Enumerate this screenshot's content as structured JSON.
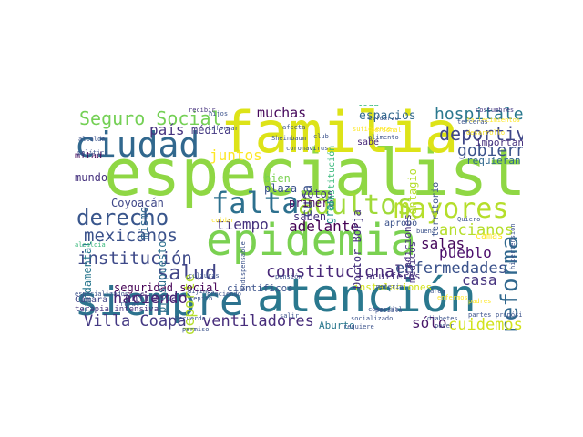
{
  "words": [
    {
      "text": "especialista",
      "color": "#8fd744"
    },
    {
      "text": "familia",
      "color": "#dde318"
    },
    {
      "text": "epidemia",
      "color": "#7ad151"
    },
    {
      "text": "atención",
      "color": "#2a788e"
    },
    {
      "text": "siempre",
      "color": "#2c728e"
    },
    {
      "text": "ciudad",
      "color": "#31688e"
    },
    {
      "text": "falta",
      "color": "#2d708e"
    },
    {
      "text": "adultos",
      "color": "#a0da39"
    },
    {
      "text": "mayores",
      "color": "#b5de2b"
    },
    {
      "text": "derecho",
      "color": "#39568c"
    },
    {
      "text": "Seguro Social",
      "color": "#74d055"
    },
    {
      "text": "hospitales",
      "color": "#2a788e"
    },
    {
      "text": "deportivo",
      "color": "#3f4788"
    },
    {
      "text": "reforma",
      "color": "#31688e"
    },
    {
      "text": "gobierno",
      "color": "#3b528b"
    },
    {
      "text": "salud",
      "color": "#414487"
    },
    {
      "text": "institución",
      "color": "#3e4a89"
    },
    {
      "text": "mexicanos",
      "color": "#3b528b"
    },
    {
      "text": "constitucional",
      "color": "#482878"
    },
    {
      "text": "enfermedades",
      "color": "#3b528b"
    },
    {
      "text": "ventiladores",
      "color": "#472d7b"
    },
    {
      "text": "cuidemos",
      "color": "#d2e21b"
    },
    {
      "text": "ancianos",
      "color": "#b5de2b"
    },
    {
      "text": "Villa Coapa",
      "color": "#443983"
    },
    {
      "text": "haciendo",
      "color": "#482173"
    },
    {
      "text": "país",
      "color": "#46337f"
    },
    {
      "text": "juntos",
      "color": "#fde725"
    },
    {
      "text": "tiempo",
      "color": "#46327e"
    },
    {
      "text": "adelante",
      "color": "#440154"
    },
    {
      "text": "salas",
      "color": "#46085c"
    },
    {
      "text": "pueblo",
      "color": "#4a0c6b"
    },
    {
      "text": "casa",
      "color": "#46337f"
    },
    {
      "text": "sólo",
      "color": "#48186a"
    },
    {
      "text": "muchas",
      "color": "#46085c"
    },
    {
      "text": "cura",
      "color": "#3b528b"
    },
    {
      "text": "deporte",
      "color": "#b5de2b"
    },
    {
      "text": "espacios",
      "color": "#31688e"
    },
    {
      "text": "toda",
      "color": "#35b779"
    },
    {
      "text": "fundamental",
      "color": "#2a788e"
    },
    {
      "text": "seguridad social",
      "color": "#440154"
    },
    {
      "text": "enfrentar",
      "color": "#472d7b"
    },
    {
      "text": "Coyoacán",
      "color": "#3f4788"
    },
    {
      "text": "mundo",
      "color": "#46327e"
    },
    {
      "text": "mismo",
      "color": "#31688e"
    },
    {
      "text": "presupuesto",
      "color": "#2d708e"
    },
    {
      "text": "médica",
      "color": "#443983"
    },
    {
      "text": "bien",
      "color": "#7ad151"
    },
    {
      "text": "plaza",
      "color": "#3b528b"
    },
    {
      "text": "votos",
      "color": "#443983"
    },
    {
      "text": "saben",
      "color": "#46327e"
    },
    {
      "text": "primero",
      "color": "#46085c"
    },
    {
      "text": "Aburto",
      "color": "#2a788e"
    },
    {
      "text": "científicos",
      "color": "#3b528b"
    },
    {
      "text": "instalaciones",
      "color": "#d2e21b"
    },
    {
      "text": "acuíferos",
      "color": "#46327e"
    },
    {
      "text": "Doctor Borja",
      "color": "#46337f"
    },
    {
      "text": "gran",
      "color": "#21918c"
    },
    {
      "text": "Constitución",
      "color": "#35b779"
    },
    {
      "text": "contagio",
      "color": "#b5de2b"
    },
    {
      "text": "tradiciones",
      "color": "#46327e"
    },
    {
      "text": "médicos",
      "color": "#46337f"
    },
    {
      "text": "territorio",
      "color": "#3b528b"
    },
    {
      "text": "importante",
      "color": "#46327e"
    },
    {
      "text": "requieran",
      "color": "#31688e"
    },
    {
      "text": "camas",
      "color": "#fde725"
    },
    {
      "text": "aprobó",
      "color": "#3b528b"
    },
    {
      "text": "Cámara",
      "color": "#414487"
    },
    {
      "text": "terapia intensiva",
      "color": "#46337f"
    },
    {
      "text": "mitad",
      "color": "#46085c"
    },
    {
      "text": "sabe",
      "color": "#482878"
    },
    {
      "text": "alcalde",
      "color": "#3b528b"
    },
    {
      "text": "política",
      "color": "#3b528b"
    },
    {
      "text": "costumbres",
      "color": "#443983"
    },
    {
      "text": "Sheinbaum",
      "color": "#3b528b"
    },
    {
      "text": "coronavirus",
      "color": "#3b528b"
    },
    {
      "text": "personal",
      "color": "#fde725"
    },
    {
      "text": "diabetes",
      "color": "#3b528b"
    },
    {
      "text": "alcaldía",
      "color": "#35b779"
    },
    {
      "text": "cuidar",
      "color": "#fde725"
    },
    {
      "text": "recibir",
      "color": "#46327e"
    },
    {
      "text": "buena",
      "color": "#3b528b"
    },
    {
      "text": "hijos",
      "color": "#3b528b"
    },
    {
      "text": "posible",
      "color": "#3b528b"
    },
    {
      "text": "enfermos",
      "color": "#fde725"
    },
    {
      "text": "pensión",
      "color": "#3b528b"
    },
    {
      "text": "propósito",
      "color": "#3b528b"
    },
    {
      "text": "culturas",
      "color": "#3b528b"
    },
    {
      "text": "rural",
      "color": "#3b528b"
    },
    {
      "text": "Quiero",
      "color": "#3b528b"
    },
    {
      "text": "club",
      "color": "#3b528b"
    },
    {
      "text": "creciendo",
      "color": "#3b528b"
    },
    {
      "text": "esfuerzo",
      "color": "#3b528b"
    },
    {
      "text": "suficiente",
      "color": "#fde725"
    },
    {
      "text": "alimento",
      "color": "#3b528b"
    },
    {
      "text": "comercial",
      "color": "#3b528b"
    },
    {
      "text": "Recuerdo",
      "color": "#3b528b"
    },
    {
      "text": "hipertensión",
      "color": "#3b528b"
    },
    {
      "text": "padres",
      "color": "#fde725"
    },
    {
      "text": "partes",
      "color": "#3b528b"
    },
    {
      "text": "poder",
      "color": "#3b528b"
    },
    {
      "text": "requiere",
      "color": "#3b528b"
    },
    {
      "text": "permiso",
      "color": "#3b528b"
    },
    {
      "text": "especializados",
      "color": "#3b528b"
    },
    {
      "text": "informar",
      "color": "#3b528b"
    },
    {
      "text": "indispensable",
      "color": "#3b528b"
    },
    {
      "text": "dijimos",
      "color": "#3b528b"
    },
    {
      "text": "repito",
      "color": "#3b528b"
    },
    {
      "text": "materia",
      "color": "#3b528b"
    },
    {
      "text": "fallecimientos",
      "color": "#fde725"
    },
    {
      "text": "desarrollo",
      "color": "#fde725"
    },
    {
      "text": "socializado",
      "color": "#3b528b"
    },
    {
      "text": "salir",
      "color": "#3b528b"
    },
    {
      "text": "área",
      "color": "#3b528b"
    },
    {
      "text": "terceras",
      "color": "#3b528b"
    },
    {
      "text": "afecta",
      "color": "#3b528b"
    }
  ]
}
